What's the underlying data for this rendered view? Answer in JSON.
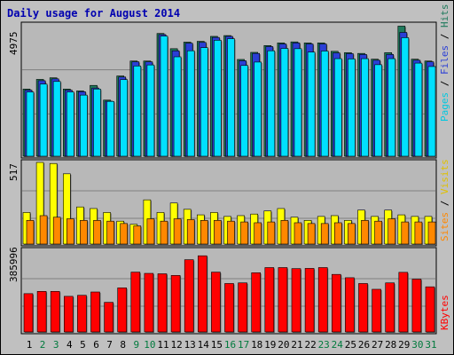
{
  "chart_data": [
    {
      "type": "bar",
      "title": "Daily usage for August 2014",
      "categories": [
        "1",
        "2",
        "3",
        "4",
        "5",
        "6",
        "7",
        "8",
        "9",
        "10",
        "11",
        "12",
        "13",
        "14",
        "15",
        "16",
        "17",
        "18",
        "19",
        "20",
        "21",
        "22",
        "23",
        "24",
        "25",
        "26",
        "27",
        "28",
        "29",
        "30",
        "31"
      ],
      "weekend_days": [
        "2",
        "3",
        "9",
        "10",
        "16",
        "17",
        "23",
        "24",
        "30",
        "31"
      ],
      "ymax_label": "4975",
      "ymax": 4975,
      "legend": [
        "Pages",
        "Files",
        "Hits"
      ],
      "series": [
        {
          "name": "Hits",
          "color": "#1f7a5c",
          "values": [
            2560,
            2930,
            2990,
            2560,
            2490,
            2700,
            2140,
            3060,
            3630,
            3630,
            4680,
            4100,
            4350,
            4380,
            4570,
            4600,
            3690,
            3960,
            4220,
            4320,
            4360,
            4320,
            4320,
            4000,
            3950,
            3920,
            3700,
            3950,
            4960,
            3700,
            3630
          ]
        },
        {
          "name": "Files",
          "color": "#2b3fd6",
          "values": [
            2520,
            2880,
            2950,
            2520,
            2460,
            2600,
            2100,
            3020,
            3600,
            3600,
            4640,
            4020,
            4310,
            4340,
            4530,
            4570,
            3640,
            3920,
            4180,
            4280,
            4320,
            4280,
            4280,
            3940,
            3910,
            3880,
            3660,
            3880,
            4720,
            3660,
            3600
          ]
        },
        {
          "name": "Pages",
          "color": "#00e0ff",
          "values": [
            2450,
            2750,
            2850,
            2450,
            2330,
            2560,
            2090,
            2920,
            3440,
            3480,
            4580,
            3790,
            4020,
            4140,
            4420,
            4480,
            3460,
            3590,
            4020,
            4110,
            4100,
            3970,
            4010,
            3720,
            3710,
            3720,
            3490,
            3720,
            4520,
            3550,
            3420
          ]
        }
      ]
    },
    {
      "type": "bar",
      "ymax_label": "517",
      "ymax": 517,
      "legend": [
        "Sites",
        "Visits"
      ],
      "series": [
        {
          "name": "Visits",
          "color": "#ffff00",
          "values": [
            200,
            517,
            510,
            445,
            235,
            225,
            200,
            145,
            125,
            280,
            200,
            260,
            220,
            185,
            200,
            175,
            180,
            190,
            210,
            225,
            170,
            150,
            175,
            180,
            150,
            215,
            175,
            215,
            185,
            175,
            175
          ]
        },
        {
          "name": "Sites",
          "color": "#ff8800",
          "values": [
            150,
            180,
            170,
            160,
            150,
            150,
            145,
            130,
            115,
            160,
            145,
            160,
            155,
            150,
            150,
            145,
            140,
            135,
            140,
            150,
            135,
            130,
            130,
            135,
            130,
            150,
            145,
            160,
            140,
            140,
            140
          ]
        }
      ]
    },
    {
      "type": "bar",
      "ymax_label": "385996",
      "ymax": 385996,
      "legend": [
        "KBytes"
      ],
      "series": [
        {
          "name": "KBytes",
          "color": "#ff0000",
          "values": [
            185000,
            196000,
            196000,
            172000,
            177000,
            193000,
            143000,
            213000,
            289000,
            283000,
            281000,
            273000,
            349000,
            368000,
            289000,
            234000,
            237000,
            286000,
            311000,
            311000,
            306000,
            307000,
            311000,
            278000,
            262000,
            234000,
            206000,
            237000,
            288000,
            255000,
            218000
          ]
        }
      ]
    }
  ]
}
